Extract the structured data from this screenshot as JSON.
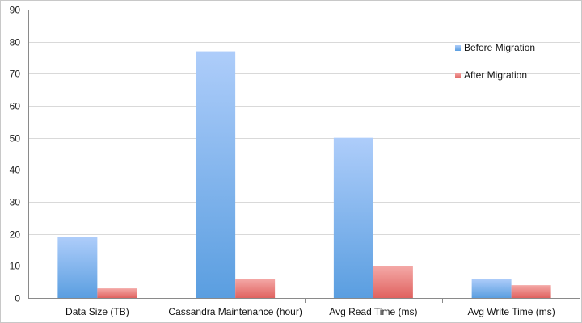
{
  "chart_data": {
    "type": "bar",
    "title": "",
    "xlabel": "",
    "ylabel": "",
    "categories": [
      "Data Size  (TB)",
      "Cassandra Maintenance (hour)",
      "Avg Read Time (ms)",
      "Avg Write Time (ms)"
    ],
    "series": [
      {
        "name": "Before Migration",
        "values": [
          19,
          77,
          50,
          6
        ],
        "color": "#6fa8e6"
      },
      {
        "name": "After Migration",
        "values": [
          3,
          6,
          10,
          4
        ],
        "color": "#e87a78"
      }
    ],
    "ylim": [
      0,
      90
    ],
    "yticks": [
      0,
      10,
      20,
      30,
      40,
      50,
      60,
      70,
      80,
      90
    ],
    "grid": true,
    "legend_position": "top-right"
  }
}
